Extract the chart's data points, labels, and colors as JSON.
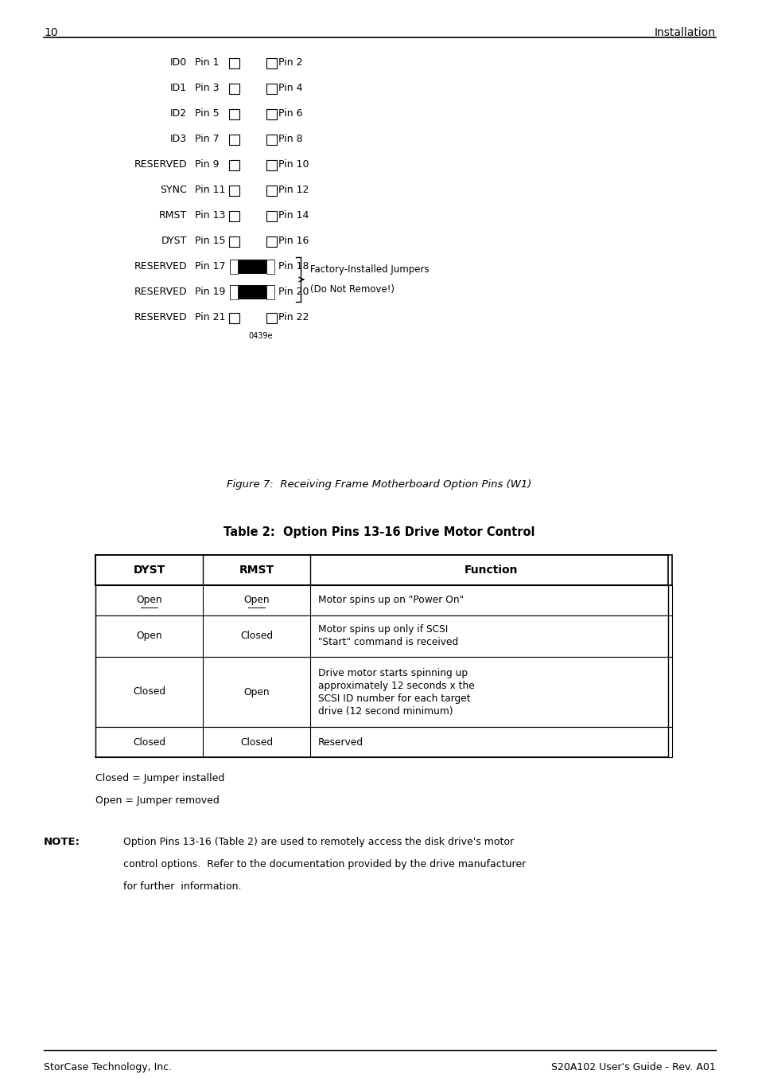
{
  "page_number": "10",
  "page_header_right": "Installation",
  "pin_rows": [
    {
      "label": "ID0",
      "pin_left": "Pin 1",
      "pin_right": "Pin 2",
      "filled": false
    },
    {
      "label": "ID1",
      "pin_left": "Pin 3",
      "pin_right": "Pin 4",
      "filled": false
    },
    {
      "label": "ID2",
      "pin_left": "Pin 5",
      "pin_right": "Pin 6",
      "filled": false
    },
    {
      "label": "ID3",
      "pin_left": "Pin 7",
      "pin_right": "Pin 8",
      "filled": false
    },
    {
      "label": "RESERVED",
      "pin_left": "Pin 9",
      "pin_right": "Pin 10",
      "filled": false
    },
    {
      "label": "SYNC",
      "pin_left": "Pin 11",
      "pin_right": "Pin 12",
      "filled": false
    },
    {
      "label": "RMST",
      "pin_left": "Pin 13",
      "pin_right": "Pin 14",
      "filled": false
    },
    {
      "label": "DYST",
      "pin_left": "Pin 15",
      "pin_right": "Pin 16",
      "filled": false
    },
    {
      "label": "RESERVED",
      "pin_left": "Pin 17",
      "pin_right": "Pin 18",
      "filled": true
    },
    {
      "label": "RESERVED",
      "pin_left": "Pin 19",
      "pin_right": "Pin 20",
      "filled": true
    },
    {
      "label": "RESERVED",
      "pin_left": "Pin 21",
      "pin_right": "Pin 22",
      "filled": false
    }
  ],
  "factory_label_line1": "Factory-Installed Jumpers",
  "factory_label_line2": "(Do Not Remove!)",
  "figure_caption": "Figure 7:  Receiving Frame Motherboard Option Pins (W1)",
  "table_title": "Table 2:  Option Pins 13-16 Drive Motor Control",
  "table_headers": [
    "DYST",
    "RMST",
    "Function"
  ],
  "table_rows": [
    [
      "Open",
      "Open",
      "Motor spins up on \"Power On\""
    ],
    [
      "Open",
      "Closed",
      "Motor spins up only if SCSI\n\"Start\" command is received"
    ],
    [
      "Closed",
      "Open",
      "Drive motor starts spinning up\napproximately 12 seconds x the\nSCSI ID number for each target\ndrive (12 second minimum)"
    ],
    [
      "Closed",
      "Closed",
      "Reserved"
    ]
  ],
  "legend_line1": "Closed = Jumper installed",
  "legend_line2": "Open = Jumper removed",
  "note_label": "NOTE:",
  "note_text": "Option Pins 13-16 (Table 2) are used to remotely access the disk drive's motor\ncontrol options.  Refer to the documentation provided by the drive manufacturer\nfor further  information.",
  "footer_left": "StorCase Technology, Inc.",
  "footer_right": "S20A102 User's Guide - Rev. A01",
  "image_code": "0439e",
  "bg_color": "#ffffff",
  "text_color": "#000000"
}
